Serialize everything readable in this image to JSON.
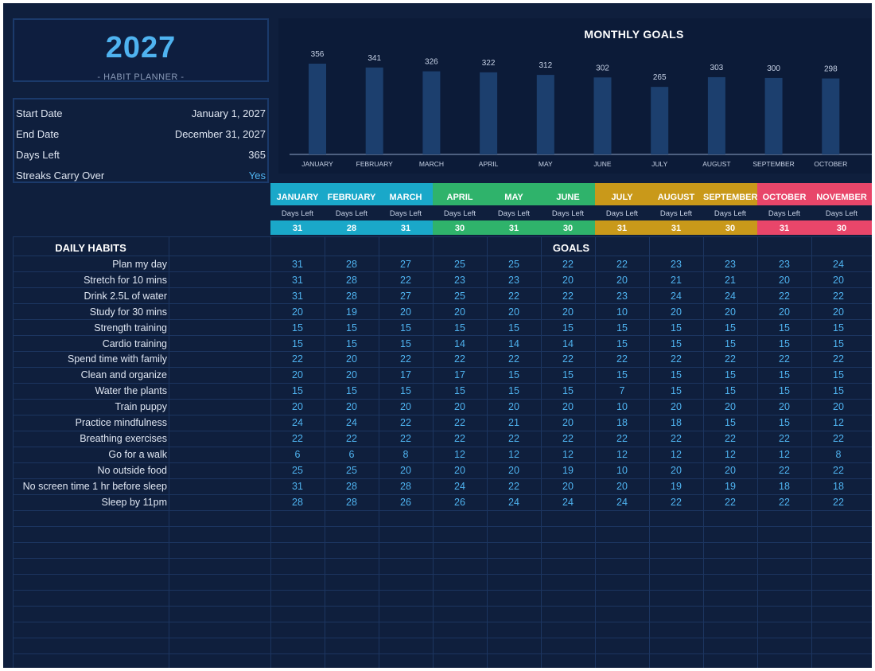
{
  "title": {
    "year": "2027",
    "subtitle": "- HABIT PLANNER -"
  },
  "info": [
    {
      "label": "Start Date",
      "value": "January 1, 2027"
    },
    {
      "label": "End Date",
      "value": "December 31, 2027"
    },
    {
      "label": "Days Left",
      "value": "365"
    },
    {
      "label": "Streaks Carry Over",
      "value": "Yes"
    }
  ],
  "chart_data": {
    "type": "bar",
    "title": "MONTHLY GOALS",
    "categories": [
      "JANUARY",
      "FEBRUARY",
      "MARCH",
      "APRIL",
      "MAY",
      "JUNE",
      "JULY",
      "AUGUST",
      "SEPTEMBER",
      "OCTOBER"
    ],
    "values": [
      356,
      341,
      326,
      322,
      312,
      302,
      265,
      303,
      300,
      298
    ],
    "ylim": [
      0,
      400
    ],
    "bar_color": "#1c3f6e"
  },
  "months": [
    {
      "name": "JANUARY",
      "sub": "Days Left",
      "days": "31",
      "color": "#1aa8c9"
    },
    {
      "name": "FEBRUARY",
      "sub": "Days Left",
      "days": "28",
      "color": "#1aa8c9"
    },
    {
      "name": "MARCH",
      "sub": "Days Left",
      "days": "31",
      "color": "#1aa8c9"
    },
    {
      "name": "APRIL",
      "sub": "Days Left",
      "days": "30",
      "color": "#2fb36b"
    },
    {
      "name": "MAY",
      "sub": "Days Left",
      "days": "31",
      "color": "#2fb36b"
    },
    {
      "name": "JUNE",
      "sub": "Days Left",
      "days": "30",
      "color": "#2fb36b"
    },
    {
      "name": "JULY",
      "sub": "Days Left",
      "days": "31",
      "color": "#c9991a"
    },
    {
      "name": "AUGUST",
      "sub": "Days Left",
      "days": "31",
      "color": "#c9991a"
    },
    {
      "name": "SEPTEMBER",
      "sub": "Days Left",
      "days": "30",
      "color": "#c9991a"
    },
    {
      "name": "OCTOBER",
      "sub": "Days Left",
      "days": "31",
      "color": "#e8466a"
    },
    {
      "name": "NOVEMBER",
      "sub": "Days Left",
      "days": "30",
      "color": "#e8466a"
    }
  ],
  "table": {
    "habits_title": "DAILY HABITS",
    "goals_title": "GOALS",
    "habits": [
      {
        "name": "Plan my day",
        "goals": [
          "31",
          "28",
          "27",
          "25",
          "25",
          "22",
          "22",
          "23",
          "23",
          "23",
          "24"
        ]
      },
      {
        "name": "Stretch for 10 mins",
        "goals": [
          "31",
          "28",
          "22",
          "23",
          "23",
          "20",
          "20",
          "21",
          "21",
          "20",
          "20"
        ]
      },
      {
        "name": "Drink 2.5L of water",
        "goals": [
          "31",
          "28",
          "27",
          "25",
          "22",
          "22",
          "23",
          "24",
          "24",
          "22",
          "22"
        ]
      },
      {
        "name": "Study for 30 mins",
        "goals": [
          "20",
          "19",
          "20",
          "20",
          "20",
          "20",
          "10",
          "20",
          "20",
          "20",
          "20"
        ]
      },
      {
        "name": "Strength training",
        "goals": [
          "15",
          "15",
          "15",
          "15",
          "15",
          "15",
          "15",
          "15",
          "15",
          "15",
          "15"
        ]
      },
      {
        "name": "Cardio training",
        "goals": [
          "15",
          "15",
          "15",
          "14",
          "14",
          "14",
          "15",
          "15",
          "15",
          "15",
          "15"
        ]
      },
      {
        "name": "Spend time with family",
        "goals": [
          "22",
          "20",
          "22",
          "22",
          "22",
          "22",
          "22",
          "22",
          "22",
          "22",
          "22"
        ]
      },
      {
        "name": "Clean and organize",
        "goals": [
          "20",
          "20",
          "17",
          "17",
          "15",
          "15",
          "15",
          "15",
          "15",
          "15",
          "15"
        ]
      },
      {
        "name": "Water the plants",
        "goals": [
          "15",
          "15",
          "15",
          "15",
          "15",
          "15",
          "7",
          "15",
          "15",
          "15",
          "15"
        ]
      },
      {
        "name": "Train puppy",
        "goals": [
          "20",
          "20",
          "20",
          "20",
          "20",
          "20",
          "10",
          "20",
          "20",
          "20",
          "20"
        ]
      },
      {
        "name": "Practice mindfulness",
        "goals": [
          "24",
          "24",
          "22",
          "22",
          "21",
          "20",
          "18",
          "18",
          "15",
          "15",
          "12"
        ]
      },
      {
        "name": "Breathing exercises",
        "goals": [
          "22",
          "22",
          "22",
          "22",
          "22",
          "22",
          "22",
          "22",
          "22",
          "22",
          "22"
        ]
      },
      {
        "name": "Go for a walk",
        "goals": [
          "6",
          "6",
          "8",
          "12",
          "12",
          "12",
          "12",
          "12",
          "12",
          "12",
          "8"
        ]
      },
      {
        "name": "No outside food",
        "goals": [
          "25",
          "25",
          "20",
          "20",
          "20",
          "19",
          "10",
          "20",
          "20",
          "22",
          "22"
        ]
      },
      {
        "name": "No screen time 1 hr before sleep",
        "goals": [
          "31",
          "28",
          "28",
          "24",
          "22",
          "20",
          "20",
          "19",
          "19",
          "18",
          "18"
        ]
      },
      {
        "name": "Sleep by 11pm",
        "goals": [
          "28",
          "28",
          "26",
          "26",
          "24",
          "24",
          "24",
          "22",
          "22",
          "22",
          "22"
        ]
      }
    ]
  }
}
